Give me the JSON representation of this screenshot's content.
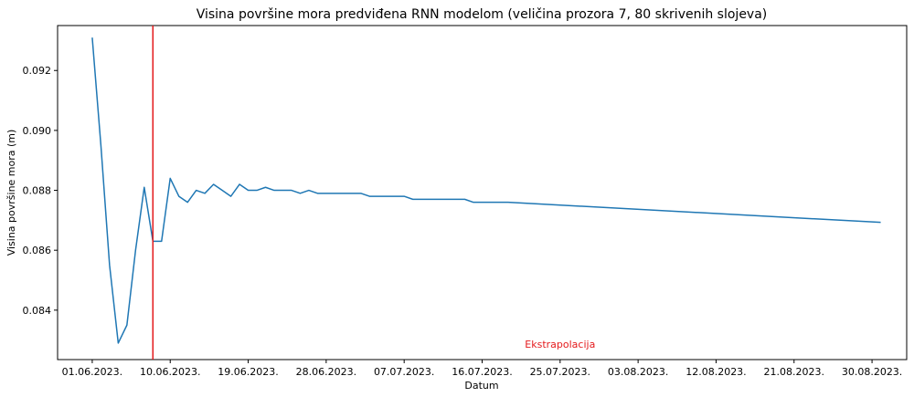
{
  "chart_data": {
    "type": "line",
    "title": "Visina površine mora predviđena RNN modelom (veličina prozora 7, 80 skrivenih slojeva)",
    "xlabel": "Datum",
    "ylabel": "Visina površine mora (m)",
    "ylim": [
      0.08235,
      0.0935
    ],
    "xlim": [
      "2023-05-28",
      "2023-09-03"
    ],
    "grid": false,
    "x_ticks": [
      {
        "date": "2023-06-01",
        "label": "01.06.2023."
      },
      {
        "date": "2023-06-10",
        "label": "10.06.2023."
      },
      {
        "date": "2023-06-19",
        "label": "19.06.2023."
      },
      {
        "date": "2023-06-28",
        "label": "28.06.2023."
      },
      {
        "date": "2023-07-07",
        "label": "07.07.2023."
      },
      {
        "date": "2023-07-16",
        "label": "16.07.2023."
      },
      {
        "date": "2023-07-25",
        "label": "25.07.2023."
      },
      {
        "date": "2023-08-03",
        "label": "03.08.2023."
      },
      {
        "date": "2023-08-12",
        "label": "12.08.2023."
      },
      {
        "date": "2023-08-21",
        "label": "21.08.2023."
      },
      {
        "date": "2023-08-30",
        "label": "30.08.2023."
      }
    ],
    "y_ticks": [
      0.084,
      0.086,
      0.088,
      0.09,
      0.092
    ],
    "series": [
      {
        "color": "#1f77b4",
        "x": [
          "2023-06-01",
          "2023-06-02",
          "2023-06-03",
          "2023-06-04",
          "2023-06-05",
          "2023-06-06",
          "2023-06-07",
          "2023-06-08",
          "2023-06-09",
          "2023-06-10",
          "2023-06-11",
          "2023-06-12",
          "2023-06-13",
          "2023-06-14",
          "2023-06-15",
          "2023-06-16",
          "2023-06-17",
          "2023-06-18",
          "2023-06-19",
          "2023-06-20",
          "2023-06-21",
          "2023-06-22",
          "2023-06-23",
          "2023-06-24",
          "2023-06-25",
          "2023-06-26",
          "2023-06-27",
          "2023-06-28",
          "2023-06-29",
          "2023-06-30",
          "2023-07-01",
          "2023-07-02",
          "2023-07-03",
          "2023-07-04",
          "2023-07-05",
          "2023-07-06",
          "2023-07-07",
          "2023-07-08",
          "2023-07-09",
          "2023-07-10",
          "2023-07-11",
          "2023-07-12",
          "2023-07-13",
          "2023-07-14",
          "2023-07-15",
          "2023-07-16",
          "2023-07-17",
          "2023-07-18",
          "2023-07-19",
          "2023-08-31"
        ],
        "y": [
          0.0931,
          0.0895,
          0.0855,
          0.0829,
          0.0835,
          0.086,
          0.0881,
          0.0863,
          0.0863,
          0.0884,
          0.0878,
          0.0876,
          0.088,
          0.0879,
          0.0882,
          0.088,
          0.0878,
          0.0882,
          0.088,
          0.088,
          0.0881,
          0.088,
          0.088,
          0.088,
          0.0879,
          0.088,
          0.0879,
          0.0879,
          0.0879,
          0.0879,
          0.0879,
          0.0879,
          0.0878,
          0.0878,
          0.0878,
          0.0878,
          0.0878,
          0.0877,
          0.0877,
          0.0877,
          0.0877,
          0.0877,
          0.0877,
          0.0877,
          0.0876,
          0.0876,
          0.0876,
          0.0876,
          0.0876,
          0.08693
        ]
      }
    ],
    "vline": {
      "date": "2023-06-08",
      "color": "#e41a1c"
    },
    "annotation": {
      "text": "Ekstrapolacija",
      "color": "#e41a1c",
      "date": "2023-07-25",
      "y": 0.08287
    }
  }
}
